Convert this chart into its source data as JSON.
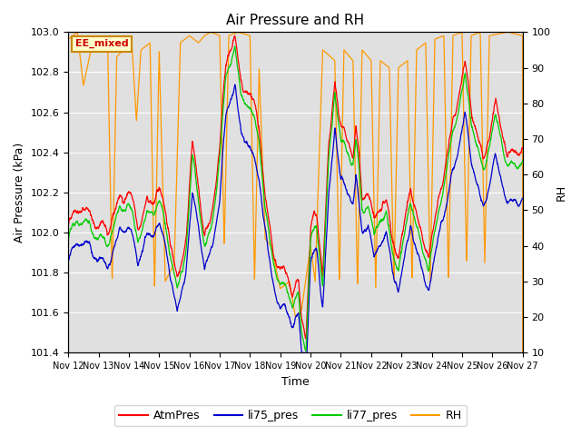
{
  "title": "Air Pressure and RH",
  "xlabel": "Time",
  "ylabel_left": "Air Pressure (kPa)",
  "ylabel_right": "RH",
  "ylim_left": [
    101.4,
    103.0
  ],
  "ylim_right": [
    10,
    100
  ],
  "yticks_left": [
    101.4,
    101.6,
    101.8,
    102.0,
    102.2,
    102.4,
    102.6,
    102.8,
    103.0
  ],
  "yticks_right": [
    10,
    20,
    30,
    40,
    50,
    60,
    70,
    80,
    90,
    100
  ],
  "xtick_labels": [
    "Nov 12",
    "Nov 13",
    "Nov 14",
    "Nov 15",
    "Nov 16",
    "Nov 17",
    "Nov 18",
    "Nov 19",
    "Nov 20",
    "Nov 21",
    "Nov 22",
    "Nov 23",
    "Nov 24",
    "Nov 25",
    "Nov 26",
    "Nov 27"
  ],
  "colors": {
    "AtmPres": "#ff0000",
    "li75_pres": "#0000cc",
    "li77_pres": "#00cc00",
    "RH": "#ff9900"
  },
  "legend_labels": [
    "AtmPres",
    "li75_pres",
    "li77_pres",
    "RH"
  ],
  "bg_color": "#e0e0e0",
  "annotation_text": "EE_mixed",
  "annotation_border_color": "#cc8800",
  "annotation_bg": "#ffffcc",
  "annotation_text_color": "#cc0000",
  "figsize": [
    6.4,
    4.8
  ],
  "dpi": 100
}
